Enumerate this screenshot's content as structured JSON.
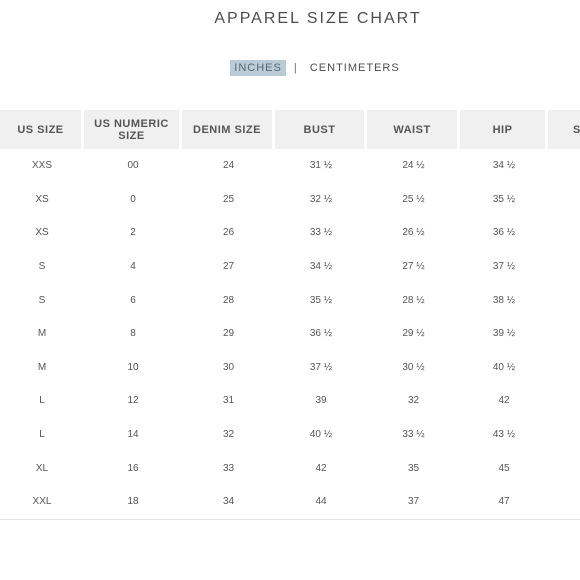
{
  "title": "APPAREL SIZE CHART",
  "units": {
    "inches_label": "INCHES",
    "separator": "|",
    "centimeters_label": "CENTIMETERS",
    "selected": "INCHES"
  },
  "colors": {
    "active_unit_bg": "#b9cbd6",
    "header_bg": "#f0f0f0",
    "text": "#555555"
  },
  "table": {
    "headers": [
      "US SIZE",
      "US NUMERIC SIZE",
      "DENIM SIZE",
      "BUST",
      "WAIST",
      "HIP",
      "S"
    ],
    "rows": [
      [
        "XXS",
        "00",
        "24",
        "31 ½",
        "24 ½",
        "34 ½",
        ""
      ],
      [
        "XS",
        "0",
        "25",
        "32 ½",
        "25 ½",
        "35 ½",
        ""
      ],
      [
        "XS",
        "2",
        "26",
        "33 ½",
        "26 ½",
        "36 ½",
        ""
      ],
      [
        "S",
        "4",
        "27",
        "34 ½",
        "27 ½",
        "37 ½",
        ""
      ],
      [
        "S",
        "6",
        "28",
        "35 ½",
        "28 ½",
        "38 ½",
        ""
      ],
      [
        "M",
        "8",
        "29",
        "36 ½",
        "29 ½",
        "39 ½",
        ""
      ],
      [
        "M",
        "10",
        "30",
        "37 ½",
        "30 ½",
        "40 ½",
        ""
      ],
      [
        "L",
        "12",
        "31",
        "39",
        "32",
        "42",
        ""
      ],
      [
        "L",
        "14",
        "32",
        "40 ½",
        "33 ½",
        "43 ½",
        ""
      ],
      [
        "XL",
        "16",
        "33",
        "42",
        "35",
        "45",
        ""
      ],
      [
        "XXL",
        "18",
        "34",
        "44",
        "37",
        "47",
        ""
      ]
    ]
  }
}
